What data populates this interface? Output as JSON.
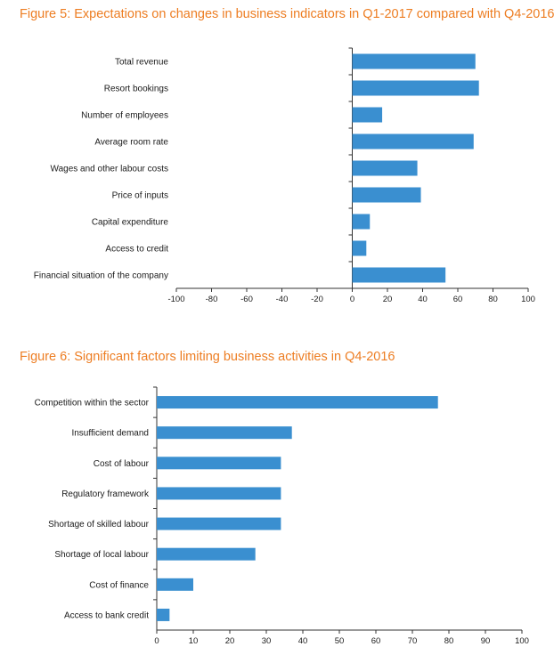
{
  "chart_data": [
    {
      "type": "bar",
      "orientation": "horizontal",
      "title": "Figure 5: Expectations on changes in business indicators in Q1-2017 compared with Q4-2016",
      "categories": [
        "Total revenue",
        "Resort bookings",
        "Number of employees",
        "Average room rate",
        "Wages and other labour costs",
        "Price of inputs",
        "Capital expenditure",
        "Access to credit",
        "Financial situation of the company"
      ],
      "values": [
        70,
        72,
        17,
        69,
        37,
        39,
        10,
        8,
        53
      ],
      "xlim": [
        -100,
        100
      ],
      "xticks": [
        -100,
        -80,
        -60,
        -40,
        -20,
        0,
        20,
        40,
        60,
        80,
        100
      ],
      "xlabel": "",
      "ylabel": "",
      "color": "#3a8fd0",
      "grid": false
    },
    {
      "type": "bar",
      "orientation": "horizontal",
      "title": "Figure 6: Significant factors limiting business activities in Q4-2016",
      "categories": [
        "Competition within the sector",
        "Insufficient demand",
        "Cost of labour",
        "Regulatory framework",
        "Shortage of skilled labour",
        "Shortage of local labour",
        "Cost of finance",
        "Access to bank credit"
      ],
      "values": [
        77,
        37,
        34,
        34,
        34,
        27,
        10,
        3.5
      ],
      "xlim": [
        0,
        100
      ],
      "xticks": [
        0,
        10,
        20,
        30,
        40,
        50,
        60,
        70,
        80,
        90,
        100
      ],
      "xlabel": "",
      "ylabel": "",
      "color": "#3a8fd0",
      "grid": false
    }
  ]
}
